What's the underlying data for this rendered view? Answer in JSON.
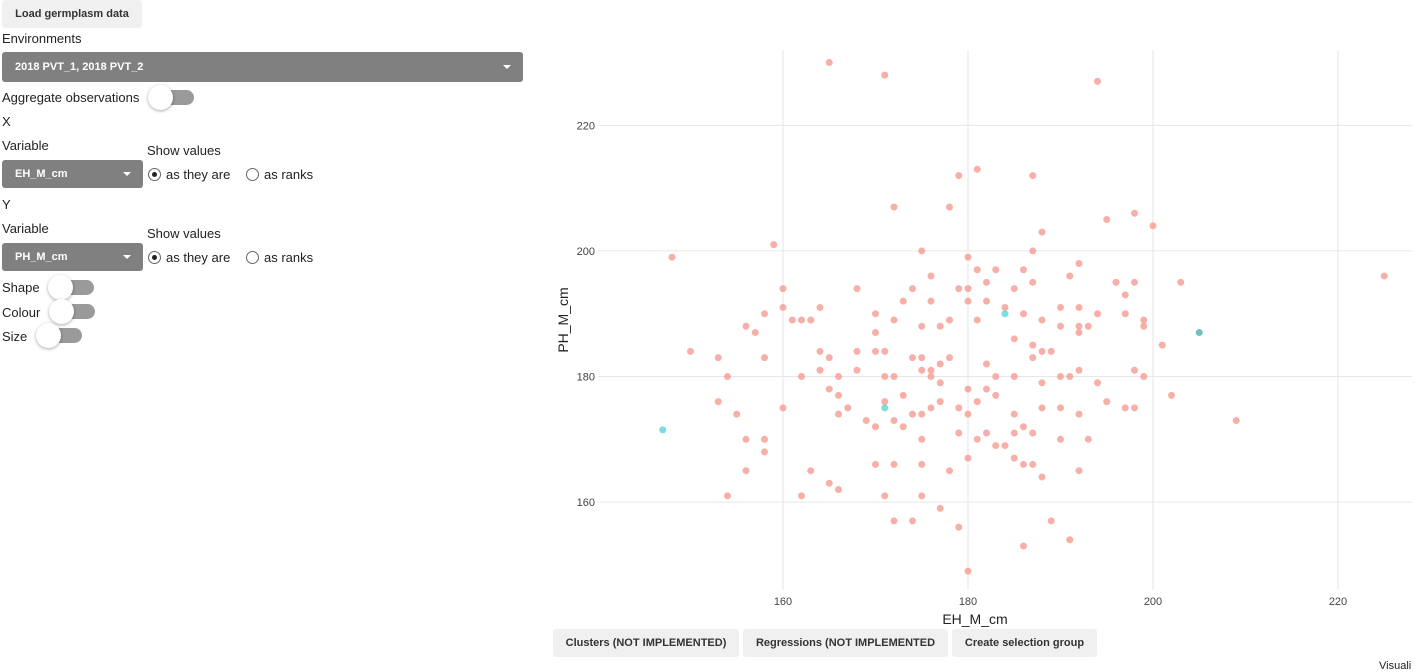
{
  "controls": {
    "load_button": "Load germplasm data",
    "environments_label": "Environments",
    "environments_value": "2018 PVT_1, 2018 PVT_2",
    "aggregate_label": "Aggregate observations",
    "x_section": "X",
    "x_variable_label": "Variable",
    "x_variable_value": "EH_M_cm",
    "x_show_values_label": "Show values",
    "x_opt_as_is": "as they are",
    "x_opt_ranks": "as ranks",
    "y_section": "Y",
    "y_variable_label": "Variable",
    "y_variable_value": "PH_M_cm",
    "y_show_values_label": "Show values",
    "y_opt_as_is": "as they are",
    "y_opt_ranks": "as ranks",
    "shape_label": "Shape",
    "colour_label": "Colour",
    "size_label": "Size"
  },
  "bottom_buttons": {
    "clusters": "Clusters (NOT IMPLEMENTED)",
    "regressions": "Regressions (NOT IMPLEMENTED",
    "selection": "Create selection group"
  },
  "corner_text": "Visuali",
  "colors": {
    "point_default": "#f4948b",
    "point_selected": "#4fd2d4",
    "point_selected_dark": "#42a9aa"
  },
  "chart_data": {
    "type": "scatter",
    "xlabel": "EH_M_cm",
    "ylabel": "PH_M_cm",
    "xlim": [
      140,
      228
    ],
    "ylim": [
      146,
      232
    ],
    "xticks": [
      160,
      180,
      200,
      220
    ],
    "yticks": [
      160,
      180,
      200,
      220
    ],
    "grid": true,
    "series": [
      {
        "color": "#f4948b",
        "points": [
          [
            165,
            230
          ],
          [
            171,
            228
          ],
          [
            194,
            227
          ],
          [
            179,
            212
          ],
          [
            181,
            213
          ],
          [
            187,
            212
          ],
          [
            172,
            207
          ],
          [
            178,
            207
          ],
          [
            195,
            205
          ],
          [
            198,
            206
          ],
          [
            200,
            204
          ],
          [
            159,
            201
          ],
          [
            148,
            199
          ],
          [
            175,
            200
          ],
          [
            180,
            199
          ],
          [
            188,
            203
          ],
          [
            187,
            200
          ],
          [
            181,
            197
          ],
          [
            183,
            197
          ],
          [
            186,
            197
          ],
          [
            192,
            198
          ],
          [
            191,
            196
          ],
          [
            176,
            196
          ],
          [
            198,
            195
          ],
          [
            203,
            195
          ],
          [
            225,
            196
          ],
          [
            160,
            194
          ],
          [
            168,
            194
          ],
          [
            174,
            194
          ],
          [
            179,
            194
          ],
          [
            180,
            194
          ],
          [
            182,
            195
          ],
          [
            185,
            194
          ],
          [
            187,
            195
          ],
          [
            196,
            195
          ],
          [
            197,
            193
          ],
          [
            160,
            191
          ],
          [
            164,
            191
          ],
          [
            173,
            192
          ],
          [
            176,
            192
          ],
          [
            180,
            192
          ],
          [
            182,
            192
          ],
          [
            184,
            191
          ],
          [
            190,
            191
          ],
          [
            192,
            191
          ],
          [
            194,
            190
          ],
          [
            197,
            190
          ],
          [
            199,
            189
          ],
          [
            158,
            190
          ],
          [
            161,
            189
          ],
          [
            162,
            189
          ],
          [
            163,
            189
          ],
          [
            170,
            190
          ],
          [
            172,
            189
          ],
          [
            175,
            188
          ],
          [
            177,
            188
          ],
          [
            178,
            189
          ],
          [
            181,
            189
          ],
          [
            186,
            190
          ],
          [
            188,
            189
          ],
          [
            190,
            188
          ],
          [
            192,
            188
          ],
          [
            193,
            188
          ],
          [
            199,
            188
          ],
          [
            156,
            188
          ],
          [
            157,
            187
          ],
          [
            170,
            187
          ],
          [
            185,
            186
          ],
          [
            187,
            185
          ],
          [
            192,
            187
          ],
          [
            201,
            185
          ],
          [
            150,
            184
          ],
          [
            153,
            183
          ],
          [
            158,
            183
          ],
          [
            164,
            184
          ],
          [
            165,
            183
          ],
          [
            168,
            184
          ],
          [
            170,
            184
          ],
          [
            171,
            184
          ],
          [
            174,
            183
          ],
          [
            175,
            183
          ],
          [
            176,
            181
          ],
          [
            177,
            182
          ],
          [
            178,
            183
          ],
          [
            182,
            182
          ],
          [
            183,
            180
          ],
          [
            185,
            180
          ],
          [
            187,
            183
          ],
          [
            188,
            184
          ],
          [
            189,
            184
          ],
          [
            154,
            180
          ],
          [
            162,
            180
          ],
          [
            164,
            181
          ],
          [
            166,
            180
          ],
          [
            168,
            181
          ],
          [
            171,
            180
          ],
          [
            172,
            180
          ],
          [
            175,
            181
          ],
          [
            176,
            180
          ],
          [
            177,
            179
          ],
          [
            180,
            178
          ],
          [
            182,
            178
          ],
          [
            188,
            179
          ],
          [
            190,
            180
          ],
          [
            191,
            180
          ],
          [
            192,
            181
          ],
          [
            194,
            179
          ],
          [
            198,
            181
          ],
          [
            199,
            180
          ],
          [
            153,
            176
          ],
          [
            155,
            174
          ],
          [
            160,
            175
          ],
          [
            165,
            178
          ],
          [
            166,
            177
          ],
          [
            167,
            175
          ],
          [
            169,
            173
          ],
          [
            170,
            172
          ],
          [
            171,
            176
          ],
          [
            172,
            173
          ],
          [
            173,
            177
          ],
          [
            174,
            174
          ],
          [
            175,
            174
          ],
          [
            176,
            175
          ],
          [
            177,
            176
          ],
          [
            179,
            175
          ],
          [
            180,
            174
          ],
          [
            181,
            176
          ],
          [
            183,
            177
          ],
          [
            185,
            174
          ],
          [
            186,
            172
          ],
          [
            188,
            175
          ],
          [
            190,
            175
          ],
          [
            192,
            174
          ],
          [
            195,
            176
          ],
          [
            197,
            175
          ],
          [
            198,
            175
          ],
          [
            202,
            177
          ],
          [
            209,
            173
          ],
          [
            156,
            170
          ],
          [
            158,
            170
          ],
          [
            166,
            174
          ],
          [
            173,
            172
          ],
          [
            175,
            170
          ],
          [
            179,
            171
          ],
          [
            181,
            170
          ],
          [
            182,
            171
          ],
          [
            183,
            169
          ],
          [
            184,
            169
          ],
          [
            185,
            171
          ],
          [
            187,
            171
          ],
          [
            190,
            170
          ],
          [
            193,
            170
          ],
          [
            156,
            165
          ],
          [
            158,
            168
          ],
          [
            163,
            165
          ],
          [
            165,
            163
          ],
          [
            166,
            162
          ],
          [
            170,
            166
          ],
          [
            172,
            166
          ],
          [
            175,
            166
          ],
          [
            178,
            165
          ],
          [
            180,
            167
          ],
          [
            185,
            167
          ],
          [
            186,
            166
          ],
          [
            187,
            166
          ],
          [
            188,
            164
          ],
          [
            192,
            165
          ],
          [
            154,
            161
          ],
          [
            162,
            161
          ],
          [
            171,
            161
          ],
          [
            175,
            161
          ],
          [
            177,
            159
          ],
          [
            179,
            156
          ],
          [
            172,
            157
          ],
          [
            174,
            157
          ],
          [
            186,
            153
          ],
          [
            189,
            157
          ],
          [
            191,
            154
          ],
          [
            180,
            149
          ]
        ]
      },
      {
        "color": "#4fd2d4",
        "points": [
          [
            147,
            171.5
          ],
          [
            171,
            175
          ],
          [
            184,
            190
          ]
        ]
      },
      {
        "color": "#42a9aa",
        "points": [
          [
            205,
            187
          ]
        ]
      }
    ]
  }
}
